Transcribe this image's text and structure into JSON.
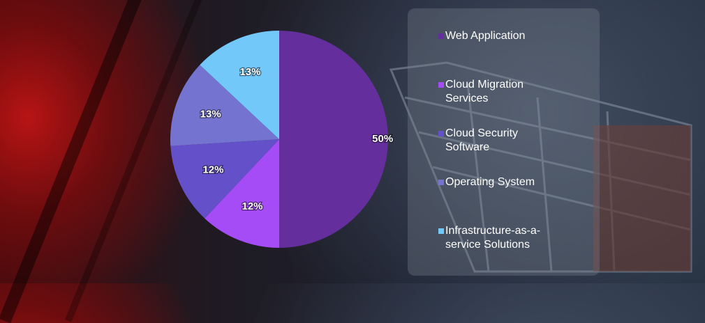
{
  "chart_data": {
    "type": "pie",
    "categories": [
      "Web Application",
      "Cloud Migration Services",
      "Cloud Security Software",
      "Operating System",
      "Infrastructure-as-a-service Solutions"
    ],
    "values": [
      50,
      12,
      12,
      13,
      13
    ],
    "labels": [
      "50%",
      "12%",
      "12%",
      "13%",
      "13%"
    ],
    "colors": [
      "#642e9c",
      "#a64cf7",
      "#6450c8",
      "#7474d0",
      "#73c8fa"
    ],
    "start_angle_deg": 0,
    "direction": "clockwise",
    "legend_position": "right"
  },
  "legend": {
    "items": [
      {
        "label": "Web Application",
        "color": "#642e9c"
      },
      {
        "label": "Cloud Migration Services",
        "color": "#a64cf7"
      },
      {
        "label": "Cloud Security Software",
        "color": "#6450c8"
      },
      {
        "label": "Operating System",
        "color": "#7474d0"
      },
      {
        "label": "Infrastructure-as-a-service Solutions",
        "color": "#73c8fa"
      }
    ]
  }
}
